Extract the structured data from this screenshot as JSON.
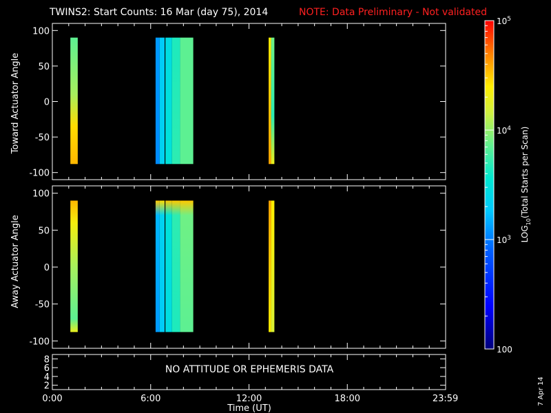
{
  "title": "TWINS2: Start Counts: 16 Mar (day  75), 2014",
  "note": "NOTE: Data Preliminary - Not validated",
  "side_date": "7 Apr 14",
  "colors": {
    "background": "#000000",
    "axis": "#ffffff",
    "note": "#ff2020"
  },
  "chart_data": [
    {
      "type": "heatmap",
      "panel": "top",
      "ylabel": "Toward Actuator Angle",
      "ylim": [
        -110,
        110
      ],
      "yticks": [
        "100",
        "50",
        "0",
        "-50",
        "-100"
      ],
      "ytick_values": [
        100,
        50,
        0,
        -50,
        -100
      ],
      "xlim": [
        0,
        24
      ],
      "y_range_of_data": [
        -88,
        90
      ],
      "scan_blocks": [
        {
          "start_hour": 1.1,
          "end_hour": 1.55,
          "profile": [
            [
              "90",
              3.85
            ],
            [
              "10",
              4.05
            ],
            [
              "-35",
              4.45
            ],
            [
              "-88",
              4.55
            ]
          ]
        },
        {
          "start_hour": 6.3,
          "end_hour": 6.55,
          "profile": [
            [
              "90",
              3.1
            ],
            [
              "-88",
              3.05
            ]
          ]
        },
        {
          "start_hour": 6.55,
          "end_hour": 6.85,
          "profile": [
            [
              "90",
              3.3
            ],
            [
              "-88",
              3.35
            ]
          ]
        },
        {
          "start_hour": 6.9,
          "end_hour": 7.3,
          "profile": [
            [
              "90",
              3.45
            ],
            [
              "-88",
              3.5
            ]
          ]
        },
        {
          "start_hour": 7.3,
          "end_hour": 7.8,
          "profile": [
            [
              "90",
              3.65
            ],
            [
              "-88",
              3.7
            ]
          ]
        },
        {
          "start_hour": 7.8,
          "end_hour": 8.6,
          "profile": [
            [
              "90",
              3.85
            ],
            [
              "-88",
              3.85
            ]
          ]
        },
        {
          "start_hour": 13.2,
          "end_hour": 13.35,
          "profile": [
            [
              "90",
              4.4
            ],
            [
              "-88",
              4.6
            ]
          ]
        },
        {
          "start_hour": 13.35,
          "end_hour": 13.55,
          "profile": [
            [
              "90",
              3.9
            ],
            [
              "-20",
              3.7
            ],
            [
              "-88",
              4.3
            ]
          ]
        }
      ]
    },
    {
      "type": "heatmap",
      "panel": "middle",
      "ylabel": "Away Actuator Angle",
      "ylim": [
        -110,
        110
      ],
      "yticks": [
        "100",
        "50",
        "0",
        "-50",
        "-100"
      ],
      "ytick_values": [
        100,
        50,
        0,
        -50,
        -100
      ],
      "xlim": [
        0,
        24
      ],
      "y_range_of_data": [
        -88,
        90
      ],
      "scan_blocks": [
        {
          "start_hour": 1.1,
          "end_hour": 1.55,
          "profile": [
            [
              "90",
              4.55
            ],
            [
              "60",
              4.35
            ],
            [
              "0",
              4.05
            ],
            [
              "-70",
              3.85
            ],
            [
              "-88",
              4.3
            ]
          ]
        },
        {
          "start_hour": 6.3,
          "end_hour": 6.55,
          "profile": [
            [
              "90",
              4.5
            ],
            [
              "70",
              3.2
            ],
            [
              "-88",
              3.1
            ]
          ]
        },
        {
          "start_hour": 6.55,
          "end_hour": 6.85,
          "profile": [
            [
              "90",
              4.45
            ],
            [
              "70",
              3.35
            ],
            [
              "-88",
              3.3
            ]
          ]
        },
        {
          "start_hour": 6.9,
          "end_hour": 7.3,
          "profile": [
            [
              "90",
              4.5
            ],
            [
              "70",
              3.5
            ],
            [
              "-88",
              3.45
            ]
          ]
        },
        {
          "start_hour": 7.3,
          "end_hour": 7.8,
          "profile": [
            [
              "90",
              4.5
            ],
            [
              "70",
              3.7
            ],
            [
              "-88",
              3.65
            ]
          ]
        },
        {
          "start_hour": 7.8,
          "end_hour": 8.6,
          "profile": [
            [
              "90",
              4.5
            ],
            [
              "70",
              3.9
            ],
            [
              "-88",
              3.85
            ]
          ]
        },
        {
          "start_hour": 13.2,
          "end_hour": 13.35,
          "profile": [
            [
              "90",
              4.6
            ],
            [
              "-88",
              4.4
            ]
          ]
        },
        {
          "start_hour": 13.35,
          "end_hour": 13.55,
          "profile": [
            [
              "90",
              4.4
            ],
            [
              "-88",
              4.2
            ]
          ]
        }
      ]
    },
    {
      "type": "line",
      "panel": "bottom",
      "yticks": [
        "8",
        "6",
        "4",
        "2"
      ],
      "ytick_values": [
        8,
        6,
        4,
        2
      ],
      "ylim": [
        1,
        9
      ],
      "message": "NO ATTITUDE OR EPHEMERIS DATA"
    }
  ],
  "x_axis": {
    "label": "Time (UT)",
    "ticks": [
      "0:00",
      "6:00",
      "12:00",
      "18:00",
      "23:59"
    ],
    "tick_hours": [
      0,
      6,
      12,
      18,
      23.983
    ]
  },
  "colorbar": {
    "label_main": "LOG",
    "label_sub": "10",
    "label_rest": "(Total Starts per Scan)",
    "log_range": [
      2,
      5
    ],
    "ticks": [
      {
        "label": "100",
        "log": 2
      },
      {
        "base": "10",
        "exp": "3",
        "log": 3
      },
      {
        "base": "10",
        "exp": "4",
        "log": 4
      },
      {
        "base": "10",
        "exp": "5",
        "log": 5
      }
    ]
  }
}
